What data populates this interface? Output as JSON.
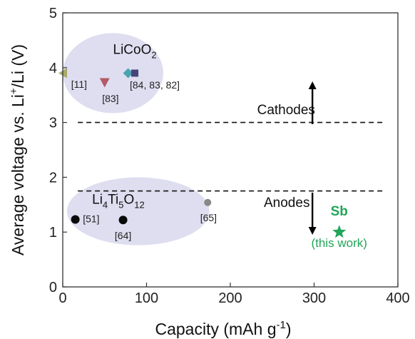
{
  "chart_data": {
    "type": "scatter",
    "xlabel": "Capacity (mAh g",
    "xlabel_sup": "-1",
    "xlabel_tail": ")",
    "ylabel": "Average voltage vs. Li",
    "ylabel_sup": "+",
    "ylabel_tail": "/Li (V)",
    "xlim": [
      0,
      400
    ],
    "ylim": [
      0,
      5
    ],
    "xticks": [
      "0",
      "100",
      "200",
      "300",
      "400"
    ],
    "yticks": [
      "0",
      "1",
      "2",
      "3",
      "4",
      "5"
    ],
    "grid": false,
    "colors": {
      "axis": "#333333",
      "ellipse": "#dcdcef",
      "highlight": "#22a55a"
    },
    "groups": [
      {
        "name": "LiCoO",
        "name_sub": "2",
        "name_tail": "",
        "ellipse": {
          "center": [
            60,
            3.9
          ],
          "rx": 60,
          "ry": 0.73
        },
        "label_at": [
          60,
          4.25
        ]
      },
      {
        "name": "Li",
        "name_sub": "4",
        "name_mid": "Ti",
        "name_sub2": "5",
        "name_tail2": "O",
        "name_sub3": "12",
        "ellipse": {
          "center": [
            90,
            1.38
          ],
          "rx": 85,
          "ry": 0.62
        },
        "label_at": [
          35,
          1.52
        ]
      }
    ],
    "points": [
      {
        "x": 0,
        "y": 3.9,
        "marker": "triangle-left",
        "color": "#a8aa6a",
        "label": "[11]",
        "label_at": [
          10,
          3.63
        ]
      },
      {
        "x": 50,
        "y": 3.73,
        "marker": "triangle-down",
        "color": "#b25a66",
        "label": "[83]",
        "label_at": [
          47,
          3.37
        ]
      },
      {
        "x": 78,
        "y": 3.9,
        "marker": "diamond",
        "color": "#4aa3b0",
        "label": "[84, 83, 82]",
        "label_at": [
          80,
          3.62
        ]
      },
      {
        "x": 86,
        "y": 3.9,
        "marker": "square",
        "color": "#45457a",
        "label": "",
        "label_at": null
      },
      {
        "x": 15,
        "y": 1.23,
        "marker": "circle",
        "color": "#0a0a0a",
        "label": "[51]",
        "label_at": [
          24,
          1.18
        ]
      },
      {
        "x": 72,
        "y": 1.22,
        "marker": "circle",
        "color": "#0a0a0a",
        "label": "[64]",
        "label_at": [
          72,
          0.87
        ]
      },
      {
        "x": 173,
        "y": 1.54,
        "marker": "circle-small",
        "color": "#888888",
        "label": "[65]",
        "label_at": [
          164,
          1.2
        ]
      },
      {
        "x": 330,
        "y": 1.0,
        "marker": "star",
        "color": "#22a55a",
        "label": "",
        "label_at": null
      }
    ],
    "lines": [
      {
        "y": 3.0,
        "x_from": 18,
        "x_to": 385,
        "style": "dashed"
      },
      {
        "y": 1.75,
        "x_from": 18,
        "x_to": 385,
        "style": "dashed"
      }
    ],
    "arrows": [
      {
        "label": "Cathodes",
        "x": 298,
        "y_from": 2.97,
        "y_to": 3.75,
        "label_at": [
          232,
          3.15
        ]
      },
      {
        "label": "Anodes",
        "x": 298,
        "y_from": 1.72,
        "y_to": 0.95,
        "label_at": [
          240,
          1.46
        ]
      }
    ],
    "highlight": {
      "label": "Sb",
      "sublabel": "(this work)",
      "label_at": [
        330,
        1.3
      ],
      "sublabel_at": [
        330,
        0.73
      ]
    }
  }
}
